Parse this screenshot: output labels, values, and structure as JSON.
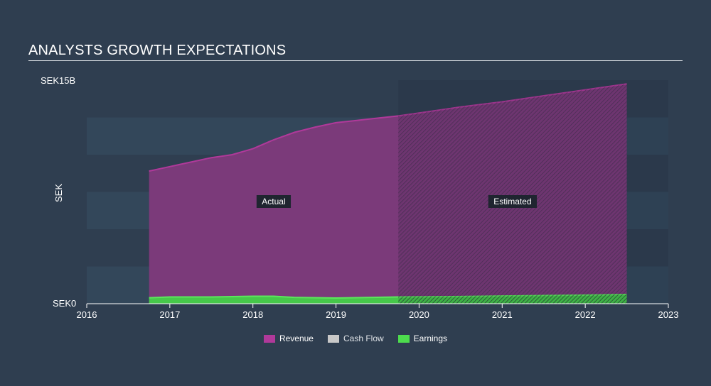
{
  "chart_data": {
    "type": "area",
    "title": "ANALYSTS GROWTH EXPECTATIONS",
    "ylabel": "SEK",
    "y_top_label": "SEK15B",
    "y_bottom_label": "SEK0",
    "ylim": [
      0,
      15
    ],
    "xlim": [
      2016,
      2023
    ],
    "x_ticks": [
      "2016",
      "2017",
      "2018",
      "2019",
      "2020",
      "2021",
      "2022",
      "2023"
    ],
    "actual_end_x": 2019.75,
    "regions": {
      "actual": "Actual",
      "estimated": "Estimated"
    },
    "series": [
      {
        "name": "Revenue",
        "color": "#b0399a",
        "points": [
          [
            2016.75,
            8.9
          ],
          [
            2017.0,
            9.2
          ],
          [
            2017.25,
            9.5
          ],
          [
            2017.5,
            9.8
          ],
          [
            2017.75,
            10.0
          ],
          [
            2018.0,
            10.4
          ],
          [
            2018.25,
            11.0
          ],
          [
            2018.5,
            11.5
          ],
          [
            2018.75,
            11.85
          ],
          [
            2019.0,
            12.15
          ],
          [
            2019.25,
            12.3
          ],
          [
            2019.5,
            12.45
          ],
          [
            2019.75,
            12.6
          ],
          [
            2020.0,
            12.8
          ],
          [
            2020.5,
            13.2
          ],
          [
            2021.0,
            13.55
          ],
          [
            2021.5,
            13.95
          ],
          [
            2022.0,
            14.35
          ],
          [
            2022.5,
            14.75
          ]
        ]
      },
      {
        "name": "Cash Flow",
        "color": "#c8c8c8",
        "points": []
      },
      {
        "name": "Earnings",
        "color": "#4ddc4d",
        "points": [
          [
            2016.75,
            0.4
          ],
          [
            2017.0,
            0.45
          ],
          [
            2017.5,
            0.45
          ],
          [
            2018.0,
            0.5
          ],
          [
            2018.25,
            0.5
          ],
          [
            2018.5,
            0.42
          ],
          [
            2019.0,
            0.38
          ],
          [
            2019.5,
            0.43
          ],
          [
            2019.75,
            0.45
          ],
          [
            2020.5,
            0.48
          ],
          [
            2021.0,
            0.52
          ],
          [
            2022.0,
            0.58
          ],
          [
            2022.5,
            0.62
          ]
        ]
      }
    ]
  },
  "legend": {
    "items": [
      {
        "label": "Revenue",
        "color": "#b0399a"
      },
      {
        "label": "Cash Flow",
        "color": "#c8c8c8"
      },
      {
        "label": "Earnings",
        "color": "#4ddc4d"
      }
    ]
  }
}
